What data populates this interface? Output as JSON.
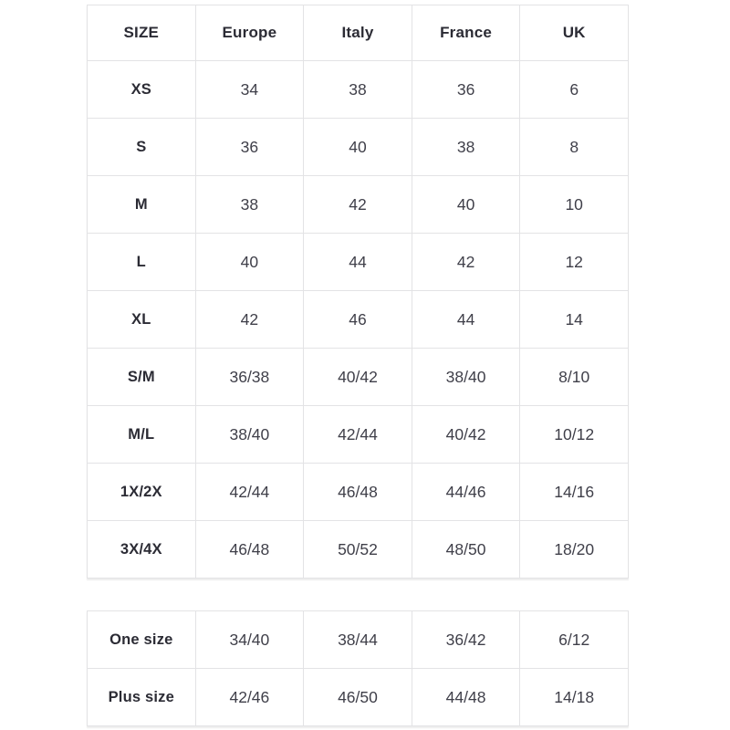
{
  "page": {
    "background": "#ffffff"
  },
  "colors": {
    "border": "#e3e3e5",
    "header_text": "#2b2b34",
    "value_text": "#3f3f49",
    "shadow_edge": "#dcdcdc"
  },
  "tables": [
    {
      "name": "international-size-conversion",
      "headers": [
        "SIZE",
        "Europe",
        "Italy",
        "France",
        "UK"
      ],
      "rows": [
        [
          "XS",
          "34",
          "38",
          "36",
          "6"
        ],
        [
          "S",
          "36",
          "40",
          "38",
          "8"
        ],
        [
          "M",
          "38",
          "42",
          "40",
          "10"
        ],
        [
          "L",
          "40",
          "44",
          "42",
          "12"
        ],
        [
          "XL",
          "42",
          "46",
          "44",
          "14"
        ],
        [
          "S/M",
          "36/38",
          "40/42",
          "38/40",
          "8/10"
        ],
        [
          "M/L",
          "38/40",
          "42/44",
          "40/42",
          "10/12"
        ],
        [
          "1X/2X",
          "42/44",
          "46/48",
          "44/46",
          "14/16"
        ],
        [
          "3X/4X",
          "46/48",
          "50/52",
          "48/50",
          "18/20"
        ]
      ]
    },
    {
      "name": "special-sizes",
      "rows": [
        [
          "One size",
          "34/40",
          "38/44",
          "36/42",
          "6/12"
        ],
        [
          "Plus size",
          "42/46",
          "46/50",
          "44/48",
          "14/18"
        ]
      ]
    }
  ]
}
